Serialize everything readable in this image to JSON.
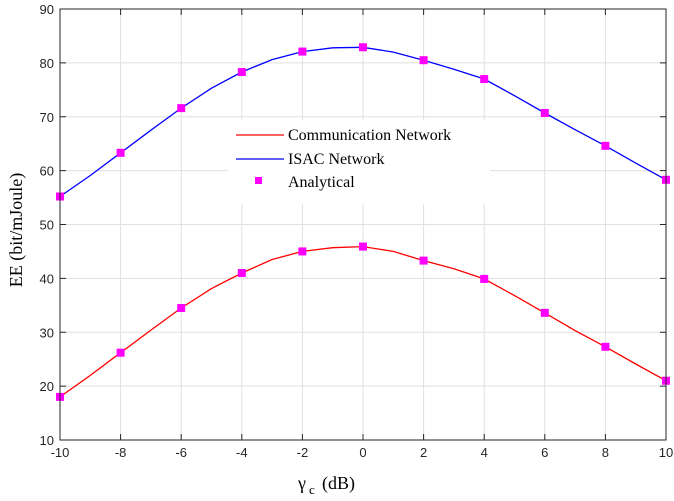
{
  "chart_data": {
    "type": "line",
    "xlabel": "(dB)",
    "xlabel_symbol": "γ",
    "xlabel_subscript": "c",
    "ylabel": "EE (bit/mJoule)",
    "xlim": [
      -10,
      10
    ],
    "ylim": [
      10,
      90
    ],
    "x_ticks": [
      -10,
      -8,
      -6,
      -4,
      -2,
      0,
      2,
      4,
      6,
      8,
      10
    ],
    "y_ticks": [
      10,
      20,
      30,
      40,
      50,
      60,
      70,
      80,
      90
    ],
    "grid": true,
    "legend_position": "center",
    "series": [
      {
        "name": "Communication Network",
        "color": "#ff0000",
        "marker": "none",
        "x": [
          -10,
          -9,
          -8,
          -7,
          -6,
          -5,
          -4,
          -3,
          -2,
          -1,
          0,
          1,
          2,
          3,
          4,
          5,
          6,
          7,
          8,
          9,
          10
        ],
        "values": [
          18.0,
          22.0,
          26.2,
          30.4,
          34.5,
          38.1,
          41.0,
          43.5,
          45.0,
          45.7,
          45.9,
          45.0,
          43.3,
          41.8,
          39.9,
          36.8,
          33.6,
          30.3,
          27.3,
          24.1,
          21.0
        ]
      },
      {
        "name": "ISAC Network",
        "color": "#0000ff",
        "marker": "none",
        "x": [
          -10,
          -9,
          -8,
          -7,
          -6,
          -5,
          -4,
          -3,
          -2,
          -1,
          0,
          1,
          2,
          3,
          4,
          5,
          6,
          7,
          8,
          9,
          10
        ],
        "values": [
          55.2,
          59.1,
          63.3,
          67.5,
          71.6,
          75.3,
          78.3,
          80.6,
          82.1,
          82.8,
          82.9,
          82.0,
          80.5,
          78.8,
          77.0,
          73.9,
          70.7,
          67.6,
          64.6,
          61.4,
          58.3
        ]
      },
      {
        "name": "Analytical",
        "color": "#ff00ff",
        "marker": "square",
        "x": [
          -10,
          -8,
          -6,
          -4,
          -2,
          0,
          2,
          4,
          6,
          8,
          10
        ],
        "values_ce": [
          18.0,
          26.2,
          34.5,
          41.0,
          45.0,
          45.9,
          43.3,
          39.9,
          33.6,
          27.3,
          21.0
        ],
        "values_isac": [
          55.2,
          63.3,
          71.6,
          78.3,
          82.1,
          82.9,
          80.5,
          77.0,
          70.7,
          64.6,
          58.3
        ]
      }
    ]
  }
}
